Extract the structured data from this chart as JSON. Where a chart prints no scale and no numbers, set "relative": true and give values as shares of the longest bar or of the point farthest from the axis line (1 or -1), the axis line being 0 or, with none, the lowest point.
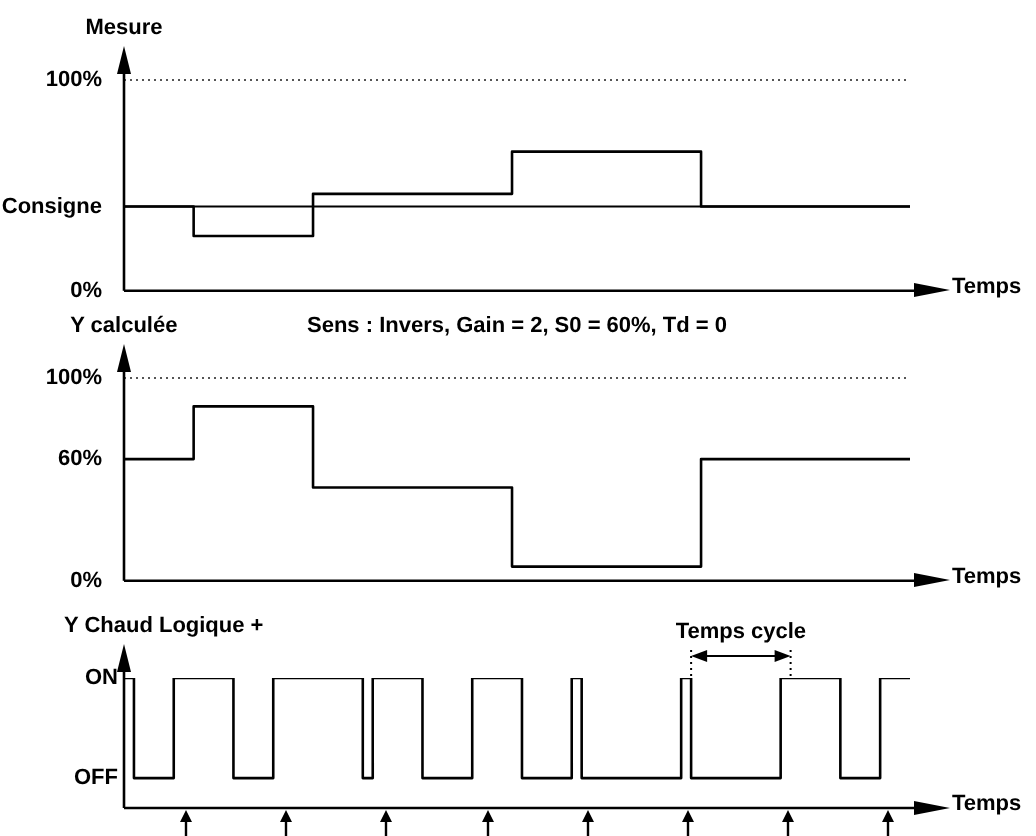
{
  "chart_data": [
    {
      "type": "step",
      "ylabel": "Mesure",
      "xlabel": "Temps",
      "tick_labels": "y",
      "marker": "none",
      "categories": [
        null,
        null,
        null,
        null,
        null,
        null,
        null,
        null,
        null,
        null,
        null,
        null,
        null,
        null,
        null,
        null,
        null,
        null,
        null,
        null,
        null,
        null,
        null,
        null,
        null,
        null,
        null,
        null,
        null,
        null,
        null,
        null,
        null,
        null,
        null,
        null,
        null,
        null,
        null,
        null,
        null,
        null,
        null,
        null,
        null,
        null,
        null,
        null,
        null,
        null,
        null,
        null,
        null,
        null,
        null,
        null,
        null,
        null,
        null,
        null,
        null,
        null,
        null,
        null,
        null,
        null,
        null,
        null,
        null,
        null,
        null,
        null,
        null,
        null,
        null,
        null,
        null,
        null,
        null,
        null
      ],
      "series": [
        {
          "color": "#000000",
          "values": [
            40,
            40,
            40,
            40,
            40,
            40,
            40,
            40,
            26,
            26,
            26,
            26,
            26,
            26,
            26,
            26,
            26,
            26,
            26,
            26,
            46,
            46,
            46,
            46,
            46,
            46,
            46,
            46,
            46,
            46,
            46,
            46,
            46,
            46,
            46,
            46,
            46,
            46,
            46,
            46,
            66,
            66,
            66,
            66,
            66,
            66,
            66,
            66,
            66,
            66,
            66,
            66,
            66,
            66,
            66,
            66,
            66,
            66,
            66,
            40,
            40,
            40,
            40,
            40,
            40,
            40,
            40,
            40,
            40,
            40,
            40,
            40,
            40,
            40,
            40,
            40,
            40,
            40,
            40,
            40
          ]
        }
      ],
      "ylim": [
        0,
        100
      ],
      "yticks": [
        {
          "value": 0,
          "label": "0%"
        },
        {
          "value": 40,
          "label": "Consigne"
        },
        {
          "value": 100,
          "label": "100%"
        }
      ],
      "ref_lines": [
        {
          "axis": "y",
          "value": 100,
          "color": "#555555",
          "line_style": "dotted"
        },
        {
          "axis": "y",
          "value": 40,
          "color": "#000000",
          "line_style": "solid"
        }
      ]
    },
    {
      "type": "step",
      "title": "Sens : Invers, Gain = 2, S0 = 60%, Td = 0",
      "ylabel": "Y calculée",
      "xlabel": "Temps",
      "tick_labels": "y",
      "marker": "none",
      "categories": [
        null,
        null,
        null,
        null,
        null,
        null,
        null,
        null,
        null,
        null,
        null,
        null,
        null,
        null,
        null,
        null,
        null,
        null,
        null,
        null,
        null,
        null,
        null,
        null,
        null,
        null,
        null,
        null,
        null,
        null,
        null,
        null,
        null,
        null,
        null,
        null,
        null,
        null,
        null,
        null,
        null,
        null,
        null,
        null,
        null,
        null,
        null,
        null,
        null,
        null,
        null,
        null,
        null,
        null,
        null,
        null,
        null,
        null,
        null,
        null,
        null,
        null,
        null,
        null,
        null,
        null,
        null,
        null,
        null,
        null,
        null,
        null,
        null,
        null,
        null,
        null,
        null,
        null,
        null,
        null
      ],
      "series": [
        {
          "color": "#000000",
          "values": [
            60,
            60,
            60,
            60,
            60,
            60,
            60,
            60,
            86,
            86,
            86,
            86,
            86,
            86,
            86,
            86,
            86,
            86,
            86,
            86,
            46,
            46,
            46,
            46,
            46,
            46,
            46,
            46,
            46,
            46,
            46,
            46,
            46,
            46,
            46,
            46,
            46,
            46,
            46,
            46,
            7,
            7,
            7,
            7,
            7,
            7,
            7,
            7,
            7,
            7,
            7,
            7,
            7,
            7,
            7,
            7,
            7,
            7,
            7,
            60,
            60,
            60,
            60,
            60,
            60,
            60,
            60,
            60,
            60,
            60,
            60,
            60,
            60,
            60,
            60,
            60,
            60,
            60,
            60,
            60
          ]
        }
      ],
      "ylim": [
        0,
        100
      ],
      "yticks": [
        {
          "value": 0,
          "label": "0%"
        },
        {
          "value": 60,
          "label": "60%"
        },
        {
          "value": 100,
          "label": "100%"
        }
      ],
      "ref_lines": [
        {
          "axis": "y",
          "value": 100,
          "color": "#555555",
          "line_style": "dotted"
        }
      ]
    },
    {
      "type": "step",
      "ylabel": "Y Chaud Logique +",
      "xlabel": "Temps",
      "tick_labels": "y",
      "marker": "none",
      "relative": true,
      "annotations": [
        "Temps cycle",
        "ON",
        "OFF"
      ],
      "categories": [
        null,
        null,
        null,
        null,
        null,
        null,
        null,
        null,
        null,
        null,
        null,
        null,
        null,
        null,
        null,
        null,
        null,
        null,
        null,
        null,
        null,
        null,
        null,
        null,
        null,
        null,
        null,
        null,
        null,
        null,
        null,
        null,
        null,
        null,
        null,
        null,
        null,
        null,
        null,
        null,
        null,
        null,
        null,
        null,
        null,
        null,
        null,
        null,
        null,
        null,
        null,
        null,
        null,
        null,
        null,
        null,
        null,
        null,
        null,
        null,
        null,
        null,
        null,
        null,
        null,
        null,
        null,
        null,
        null,
        null,
        null,
        null,
        null,
        null,
        null,
        null,
        null,
        null,
        null,
        null
      ],
      "series": [
        {
          "color": "#000000",
          "values": [
            1,
            1,
            0.23,
            0.23,
            0.23,
            0.23,
            1,
            1,
            1,
            1,
            1,
            1,
            0.23,
            0.23,
            0.23,
            0.23,
            1,
            1,
            1,
            1,
            1,
            1,
            1,
            1,
            1,
            0.23,
            1,
            1,
            1,
            1,
            1,
            0.23,
            0.23,
            0.23,
            0.23,
            0.23,
            1,
            1,
            1,
            1,
            1,
            0.23,
            0.23,
            0.23,
            0.23,
            0.23,
            1,
            0.23,
            0.23,
            0.23,
            0.23,
            0.23,
            0.23,
            0.23,
            0.23,
            0.23,
            0.23,
            1,
            0.23,
            0.23,
            0.23,
            0.23,
            0.23,
            0.23,
            0.23,
            0.23,
            0.23,
            1,
            1,
            1,
            1,
            1,
            1,
            0.23,
            0.23,
            0.23,
            0.23,
            1,
            1,
            1
          ]
        }
      ]
    }
  ]
}
